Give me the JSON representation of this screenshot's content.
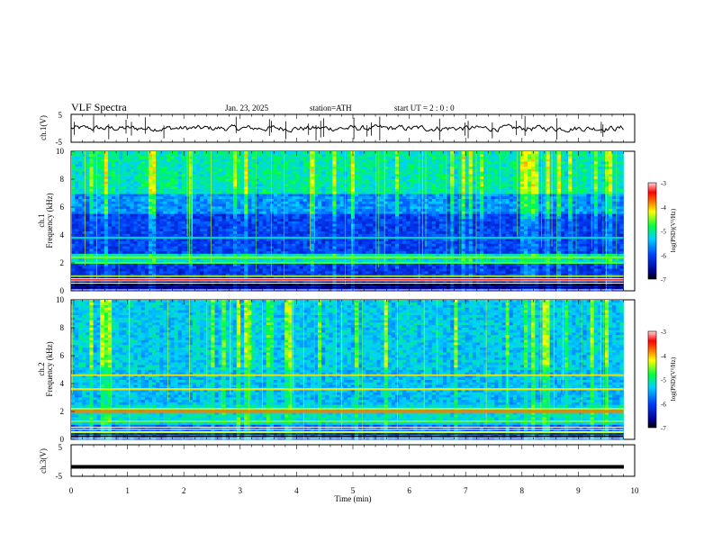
{
  "header": {
    "title": "VLF Spectra",
    "date": "Jan. 23, 2025",
    "station": "station=ATH",
    "start": "start UT = 2 : 0 : 0"
  },
  "chart_data": [
    {
      "type": "line",
      "panel": "ch1-waveform",
      "ylabel": "ch.1(V)",
      "ylim": [
        -5,
        5
      ],
      "yticks": [
        "5",
        "-5"
      ],
      "xlim": [
        0,
        10
      ],
      "baseline": 0,
      "color": "#000000"
    },
    {
      "type": "heatmap",
      "panel": "ch1-spectrogram",
      "ylabel_channel": "ch.1",
      "ylabel": "Frequency (kHz)",
      "ylim": [
        0,
        10
      ],
      "yticks": [
        "0",
        "2",
        "4",
        "6",
        "8",
        "10"
      ],
      "xlim": [
        0,
        9.8
      ],
      "colorbar": {
        "label": "log(PSD)(V²/Hz)",
        "range": [
          -7,
          -3
        ],
        "ticks": [
          "-3",
          "-4",
          "-5",
          "-6",
          "-7"
        ]
      }
    },
    {
      "type": "heatmap",
      "panel": "ch2-spectrogram",
      "ylabel_channel": "ch.2",
      "ylabel": "Frequency (kHz)",
      "ylim": [
        0,
        10
      ],
      "yticks": [
        "0",
        "2",
        "4",
        "6",
        "8",
        "10"
      ],
      "xlim": [
        0,
        9.8
      ],
      "colorbar": {
        "label": "log(PSD)(V²/Hz)",
        "range": [
          -7,
          -3
        ],
        "ticks": [
          "-3",
          "-4",
          "-5",
          "-6",
          "-7"
        ]
      }
    },
    {
      "type": "line",
      "panel": "ch3-waveform",
      "ylabel": "ch.3(V)",
      "ylim": [
        -5,
        5
      ],
      "yticks": [
        "5",
        "-5"
      ],
      "xlim": [
        0,
        10
      ],
      "baseline": -2,
      "color": "#000000"
    }
  ],
  "x_axis": {
    "label": "Time (min)",
    "range": [
      0,
      10
    ],
    "ticks": [
      "0",
      "1",
      "2",
      "3",
      "4",
      "5",
      "6",
      "7",
      "8",
      "9",
      "10"
    ]
  }
}
